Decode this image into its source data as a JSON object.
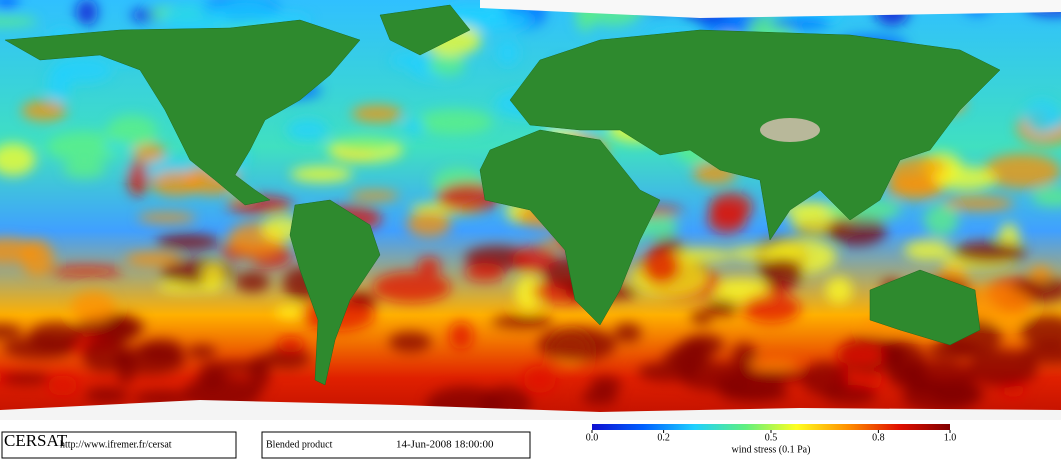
{
  "footer": {
    "logo": "CERSAT",
    "url": "http://www.ifremer.fr/cersat",
    "product": "Blended product",
    "date": "14-Jun-2008 18:00:00"
  },
  "colorbar": {
    "label": "wind stress (0.1 Pa)",
    "lim": [
      0,
      1
    ],
    "ticks": [
      {
        "value": 0,
        "label": "0.0"
      },
      {
        "value": 0.2,
        "label": "0.2"
      },
      {
        "value": 0.5,
        "label": "0.5"
      },
      {
        "value": 0.8,
        "label": "0.8"
      },
      {
        "value": 1,
        "label": "1.0"
      }
    ],
    "colors": [
      "#1010d0",
      "#0060ff",
      "#20d0ff",
      "#60f080",
      "#ffff20",
      "#ff9000",
      "#e01000",
      "#800000"
    ]
  }
}
